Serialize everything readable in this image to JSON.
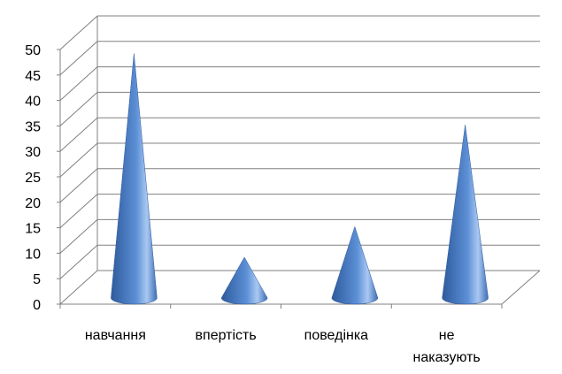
{
  "chart_data": {
    "type": "bar",
    "style": "3d-cone",
    "categories": [
      "навчання",
      "впертість",
      "поведінка",
      "не наказують"
    ],
    "category_lines": [
      [
        "навчання"
      ],
      [
        "впертість"
      ],
      [
        "поведінка"
      ],
      [
        "не",
        "наказують"
      ]
    ],
    "values": [
      48,
      8,
      14,
      34
    ],
    "ylim": [
      0,
      50
    ],
    "yticks": [
      "0",
      "5",
      "10",
      "15",
      "20",
      "25",
      "30",
      "35",
      "40",
      "45",
      "50"
    ],
    "grid": true,
    "legend": "none",
    "colors": {
      "cone_dark": "#2e5a9c",
      "cone_mid": "#5c8fd6",
      "cone_light": "#a9c8f2",
      "grid": "#808080"
    }
  }
}
